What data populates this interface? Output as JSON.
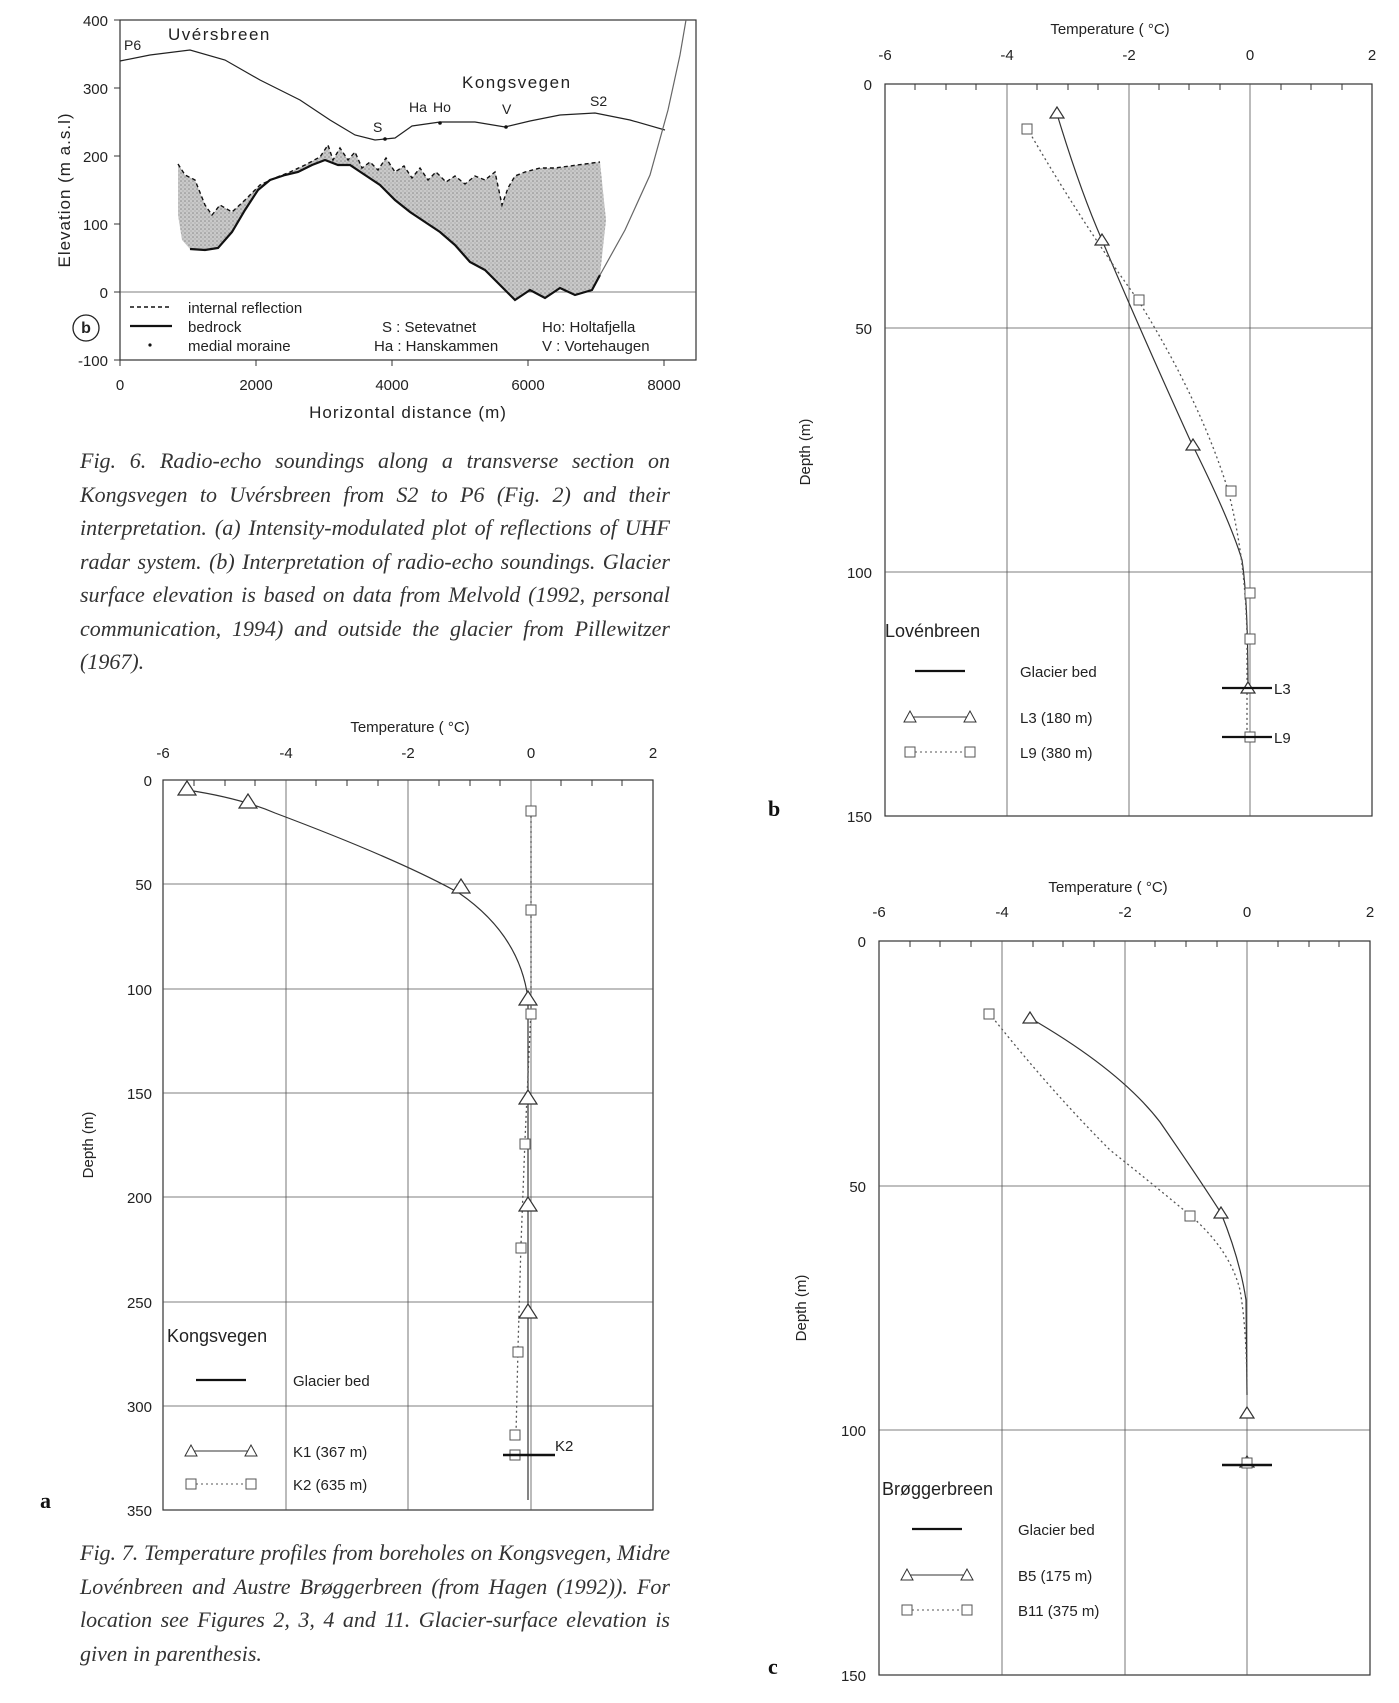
{
  "fig6": {
    "panel_label": "b",
    "ylabel": "Elevation (m a.s.l)",
    "xlabel": "Horizontal distance (m)",
    "yticks": [
      "400",
      "300",
      "200",
      "100",
      "0",
      "-100"
    ],
    "xticks": [
      "0",
      "2000",
      "4000",
      "6000",
      "8000"
    ],
    "names": {
      "uversbreen": "Uvérsbreen",
      "kongsvegen": "Kongsvegen"
    },
    "points": {
      "p6": "P6",
      "s": "S",
      "ha": "Ha",
      "ho": "Ho",
      "v": "V",
      "s2": "S2"
    },
    "legend": {
      "internal": "internal reflection",
      "bedrock": "bedrock",
      "moraine": "medial moraine",
      "s": "S  :  Setevatnet",
      "ha": "Ha  :  Hanskammen",
      "ho": "Ho:  Holtafjella",
      "v": "V   :  Vortehaugen"
    },
    "caption": "Fig. 6. Radio-echo soundings along a transverse section on Kongsvegen to Uvérsbreen from S2 to P6 (Fig. 2) and their interpretation. (a) Intensity-modulated plot of reflections of UHF radar system. (b) Interpretation of radio-echo soundings. Glacier surface elevation is based on data from Melvold (1992, personal communication, 1994) and outside the glacier from Pillewitzer (1967)."
  },
  "fig7": {
    "caption": "Fig. 7. Temperature profiles from boreholes on Kongsvegen, Midre Lovénbreen and Austre Brøggerbreen (from Hagen (1992)). For location see Figures 2, 3, 4 and 11. Glacier-surface elevation is given in parenthesis.",
    "common": {
      "xlabel": "Temperature ( °C)",
      "ylabel": "Depth (m)",
      "glacier_bed": "Glacier bed"
    },
    "panels": {
      "a": {
        "letter": "a",
        "title": "Kongsvegen",
        "xticks": [
          "-6",
          "-4",
          "-2",
          "0",
          "2"
        ],
        "yticks": [
          "0",
          "50",
          "100",
          "150",
          "200",
          "250",
          "300",
          "350"
        ],
        "series1": "K1  (367 m)",
        "series2": "K2  (635 m)",
        "bed_label": "K2"
      },
      "b": {
        "letter": "b",
        "title": "Lovénbreen",
        "xticks": [
          "-6",
          "-4",
          "-2",
          "0",
          "2"
        ],
        "yticks": [
          "0",
          "50",
          "100",
          "150"
        ],
        "series1": "L3  (180 m)",
        "series2": "L9  (380 m)",
        "bed1": "L3",
        "bed2": "L9"
      },
      "c": {
        "letter": "c",
        "title": "Brøggerbreen",
        "xticks": [
          "-6",
          "-4",
          "-2",
          "0",
          "2"
        ],
        "yticks": [
          "0",
          "50",
          "100",
          "150"
        ],
        "series1": "B5   (175 m)",
        "series2": "B11 (375 m)"
      }
    }
  },
  "chart_data": [
    {
      "type": "line",
      "xlabel": "Horizontal distance (m)",
      "ylabel": "Elevation (m a.s.l)",
      "xlim": [
        0,
        8000
      ],
      "ylim": [
        -100,
        400
      ],
      "series": [
        {
          "name": "bedrock",
          "x": [
            800,
            1200,
            1500,
            2000,
            2500,
            3000,
            3400,
            3800,
            4200,
            4600,
            5000,
            5400,
            5800,
            6200,
            6600,
            7000,
            7150
          ],
          "values": [
            65,
            65,
            85,
            120,
            165,
            195,
            175,
            140,
            110,
            90,
            55,
            15,
            -30,
            -20,
            -35,
            -15,
            20
          ]
        },
        {
          "name": "internal reflection",
          "x": [
            850,
            1000,
            1300,
            1600,
            2000,
            2500,
            3000,
            3300,
            3700,
            4100,
            4500,
            4900,
            5300,
            5600,
            5800,
            6000,
            6400,
            6800,
            7100
          ],
          "values": [
            190,
            175,
            110,
            130,
            150,
            170,
            205,
            190,
            195,
            180,
            185,
            175,
            180,
            170,
            130,
            175,
            185,
            190,
            190
          ]
        }
      ]
    },
    {
      "type": "line",
      "title": "Kongsvegen",
      "xlabel": "Temperature ( °C)",
      "ylabel": "Depth (m)",
      "xlim": [
        -6,
        2
      ],
      "ylim": [
        350,
        0
      ],
      "series": [
        {
          "name": "K1  (367 m)",
          "temperature": [
            -5.6,
            -4.6,
            -1.1,
            -0.05,
            -0.05,
            -0.05,
            -0.05
          ],
          "depth": [
            5,
            11,
            52,
            105,
            152,
            204,
            255
          ]
        },
        {
          "name": "K2  (635 m)",
          "temperature": [
            0.0,
            0.0,
            0.0,
            -0.1,
            -0.15,
            -0.2,
            -0.25,
            -0.25
          ],
          "depth": [
            15,
            62,
            112,
            174,
            224,
            274,
            314,
            324
          ]
        }
      ]
    },
    {
      "type": "line",
      "title": "Lovénbreen",
      "xlabel": "Temperature ( °C)",
      "ylabel": "Depth (m)",
      "xlim": [
        -6,
        2
      ],
      "ylim": [
        150,
        0
      ],
      "series": [
        {
          "name": "L3  (180 m)",
          "temperature": [
            -3.1,
            -2.4,
            -0.9,
            0.0
          ],
          "depth": [
            6,
            32,
            74,
            123
          ]
        },
        {
          "name": "L9  (380 m)",
          "temperature": [
            -3.6,
            -1.8,
            -0.3,
            0.0,
            0.0,
            0.0
          ],
          "depth": [
            9,
            44,
            83,
            104,
            114,
            134
          ]
        }
      ]
    },
    {
      "type": "line",
      "title": "Brøggerbreen",
      "xlabel": "Temperature ( °C)",
      "ylabel": "Depth (m)",
      "xlim": [
        -6,
        2
      ],
      "ylim": [
        150,
        0
      ],
      "series": [
        {
          "name": "B5   (175 m)",
          "temperature": [
            -3.6,
            -0.9,
            0.0,
            0.0
          ],
          "depth": [
            16,
            55,
            96,
            106
          ]
        },
        {
          "name": "B11 (375 m)",
          "temperature": [
            -4.2,
            -1.3,
            0.0
          ],
          "depth": [
            15,
            55,
            106
          ]
        }
      ]
    }
  ]
}
